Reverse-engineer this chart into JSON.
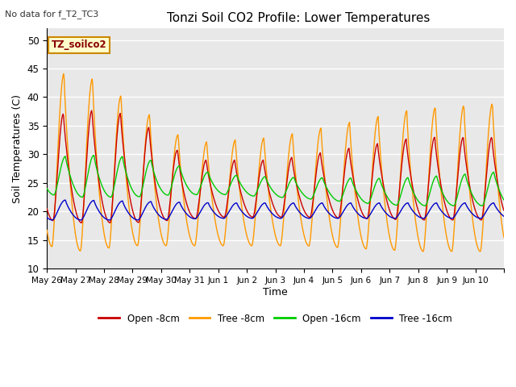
{
  "title": "Tonzi Soil CO2 Profile: Lower Temperatures",
  "subtitle": "No data for f_T2_TC3",
  "ylabel": "Soil Temperatures (C)",
  "xlabel": "Time",
  "annotation": "TZ_soilco2",
  "ylim": [
    10,
    52
  ],
  "yticks": [
    10,
    15,
    20,
    25,
    30,
    35,
    40,
    45,
    50
  ],
  "bg_color": "#e8e8e8",
  "fig_color": "#ffffff",
  "grid_color": "#ffffff",
  "x_labels": [
    "May 26",
    "May 27",
    "May 28",
    "May 29",
    "May 30",
    "May 31",
    "Jun 1",
    "Jun 2",
    "Jun 3",
    "Jun 4",
    "Jun 5",
    "Jun 6",
    "Jun 7",
    "Jun 8",
    "Jun 9",
    "Jun 10"
  ],
  "colors": {
    "open8": "#cc0000",
    "tree8": "#ff9900",
    "open16": "#00cc00",
    "tree16": "#0000cc"
  },
  "legend": [
    "Open -8cm",
    "Tree -8cm",
    "Open -16cm",
    "Tree -16cm"
  ]
}
